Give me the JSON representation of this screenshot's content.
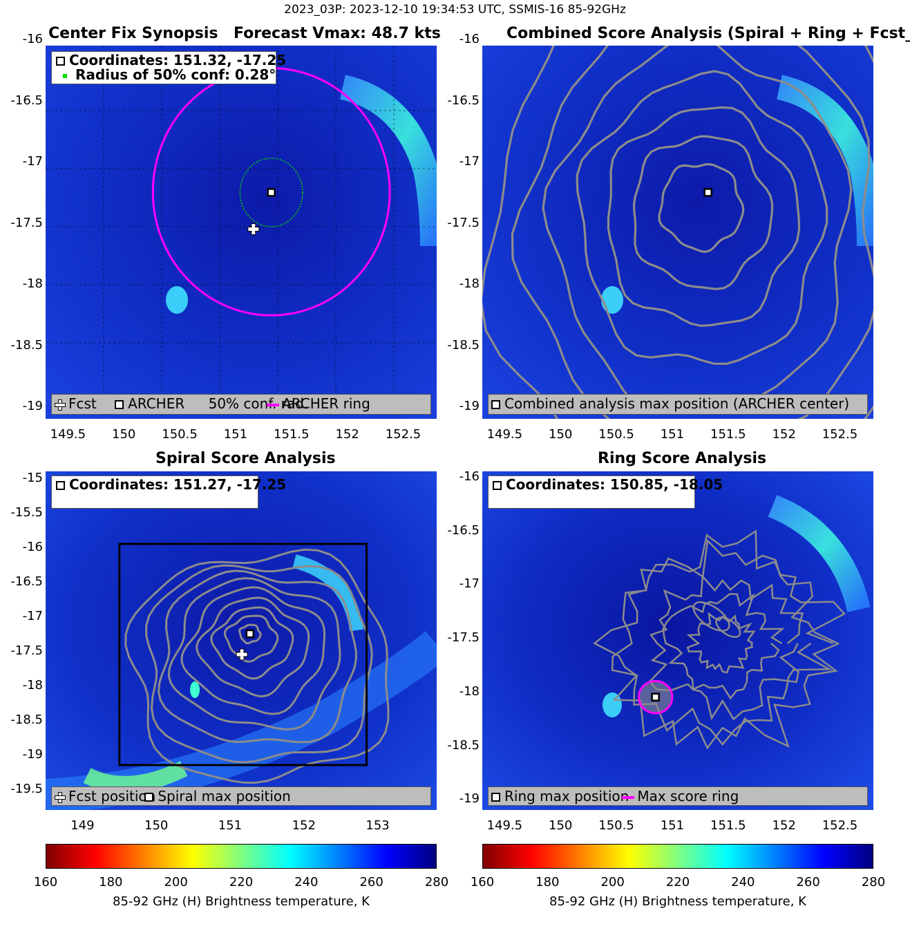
{
  "super_title": "2023_03P: 2023-12-10 19:34:53 UTC, SSMIS-16 85-92GHz",
  "panels": {
    "synopsis": {
      "title_left": "Center Fix Synopsis",
      "title_right": "Forecast Vmax: 48.7 kts",
      "legend_top": {
        "coords": "Coordinates: 151.32, -17.25",
        "radius": "Radius of 50% conf: 0.28°"
      },
      "legend_bottom": {
        "fcst": "Fcst",
        "archer": "ARCHER",
        "conf": "50% conf. rad.",
        "ring": "ARCHER ring"
      }
    },
    "combined": {
      "title": "Combined Score Analysis (Spiral + Ring + Fcst_Pe",
      "legend_bottom": "Combined analysis max position (ARCHER center)"
    },
    "spiral": {
      "title": "Spiral Score Analysis",
      "legend_top": "Coordinates: 151.27, -17.25",
      "legend_bottom": {
        "fcst": "Fcst position",
        "max": "Spiral max position"
      }
    },
    "ring": {
      "title": "Ring Score Analysis",
      "legend_top": "Coordinates: 150.85, -18.05",
      "legend_bottom": {
        "max": "Ring max position",
        "ring": "Max score ring"
      }
    }
  },
  "axes": {
    "top_x_ticks": [
      "149.5",
      "150",
      "150.5",
      "151",
      "151.5",
      "152",
      "152.5"
    ],
    "top_y_ticks": [
      "-16",
      "-16.5",
      "-17",
      "-17.5",
      "-18",
      "-18.5",
      "-19"
    ],
    "spiral_x_ticks": [
      "149",
      "150",
      "151",
      "152",
      "153"
    ],
    "spiral_y_ticks": [
      "-15",
      "-15.5",
      "-16",
      "-16.5",
      "-17",
      "-17.5",
      "-18",
      "-18.5",
      "-19",
      "-19.5"
    ],
    "ring_x_ticks": [
      "149.5",
      "150",
      "150.5",
      "151",
      "151.5",
      "152",
      "152.5"
    ],
    "ring_y_ticks": [
      "-16",
      "-16.5",
      "-17",
      "-17.5",
      "-18",
      "-18.5",
      "-19"
    ]
  },
  "colorbars": {
    "ticks": [
      "160",
      "180",
      "200",
      "220",
      "240",
      "260",
      "280"
    ],
    "label": "85-92 GHz (H) Brightness temperature, K"
  },
  "chart_data": [
    {
      "type": "heatmap",
      "name": "Center Fix Synopsis",
      "title": "Center Fix Synopsis     Forecast Vmax: 48.7 kts",
      "xlim": [
        149.3,
        152.8
      ],
      "ylim": [
        -19.1,
        -16.05
      ],
      "archer_center": [
        151.32,
        -17.25
      ],
      "forecast_position": [
        151.16,
        -17.55
      ],
      "conf_radius_deg": 0.28,
      "archer_ring_radius_deg": 1.0,
      "clim": [
        160,
        280
      ]
    },
    {
      "type": "heatmap",
      "name": "Combined Score Analysis",
      "xlim": [
        149.3,
        152.8
      ],
      "ylim": [
        -19.1,
        -16.05
      ],
      "max_position": [
        151.32,
        -17.25
      ],
      "contour_center": [
        151.32,
        -17.25
      ],
      "clim": [
        160,
        280
      ]
    },
    {
      "type": "heatmap",
      "name": "Spiral Score Analysis",
      "xlim": [
        148.5,
        153.8
      ],
      "ylim": [
        -19.8,
        -14.9
      ],
      "max_position": [
        151.27,
        -17.25
      ],
      "forecast_position": [
        151.16,
        -17.55
      ],
      "search_box": {
        "xmin": 149.5,
        "xmax": 152.85,
        "ymin": -19.15,
        "ymax": -15.95
      },
      "clim": [
        160,
        280
      ]
    },
    {
      "type": "heatmap",
      "name": "Ring Score Analysis",
      "xlim": [
        149.3,
        152.8
      ],
      "ylim": [
        -19.1,
        -15.95
      ],
      "max_position": [
        150.85,
        -18.05
      ],
      "max_score_ring_radius_deg": 0.15,
      "clim": [
        160,
        280
      ]
    }
  ]
}
